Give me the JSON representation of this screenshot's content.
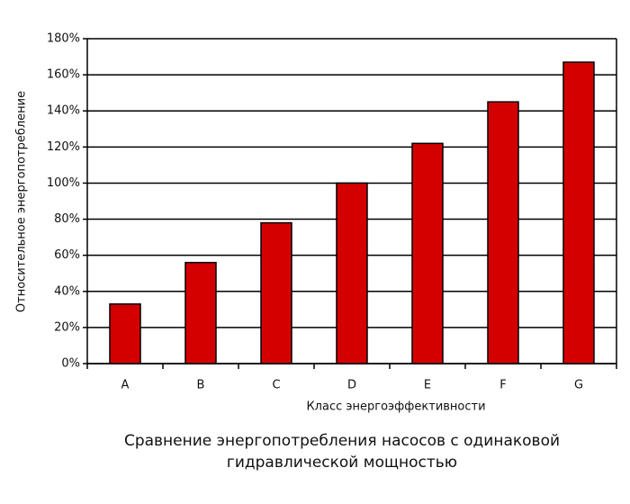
{
  "chart_data": {
    "type": "bar",
    "title": "Сравнение энергопотребления насосов с одинаковой гидравлической мощностью",
    "xlabel": "Класс энергоэффективности",
    "ylabel": "Относительное энергопотребление",
    "categories": [
      "A",
      "B",
      "C",
      "D",
      "E",
      "F",
      "G"
    ],
    "values": [
      33,
      56,
      78,
      100,
      122,
      145,
      167
    ],
    "color": "#d40000",
    "ylim": [
      0,
      180
    ],
    "yticks": [
      {
        "value": 0,
        "label": "0%"
      },
      {
        "value": 20,
        "label": "20%"
      },
      {
        "value": 40,
        "label": "40%"
      },
      {
        "value": 60,
        "label": "60%"
      },
      {
        "value": 80,
        "label": "80%"
      },
      {
        "value": 100,
        "label": "100%"
      },
      {
        "value": 120,
        "label": "120%"
      },
      {
        "value": 140,
        "label": "140%"
      },
      {
        "value": 160,
        "label": "160%"
      },
      {
        "value": 180,
        "label": "180%"
      }
    ],
    "grid": true
  }
}
